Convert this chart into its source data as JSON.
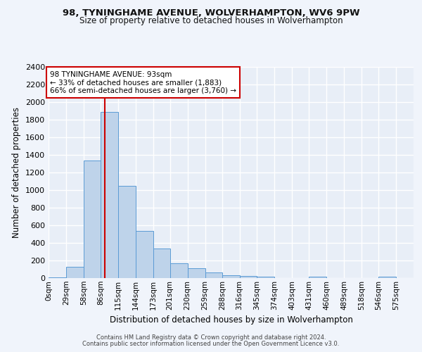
{
  "title_line1": "98, TYNINGHAME AVENUE, WOLVERHAMPTON, WV6 9PW",
  "title_line2": "Size of property relative to detached houses in Wolverhampton",
  "xlabel": "Distribution of detached houses by size in Wolverhampton",
  "ylabel": "Number of detached properties",
  "bin_labels": [
    "0sqm",
    "29sqm",
    "58sqm",
    "86sqm",
    "115sqm",
    "144sqm",
    "173sqm",
    "201sqm",
    "230sqm",
    "259sqm",
    "288sqm",
    "316sqm",
    "345sqm",
    "374sqm",
    "403sqm",
    "431sqm",
    "460sqm",
    "489sqm",
    "518sqm",
    "546sqm",
    "575sqm"
  ],
  "bar_values": [
    10,
    130,
    1340,
    1890,
    1045,
    540,
    340,
    165,
    110,
    62,
    35,
    25,
    18,
    0,
    0,
    20,
    0,
    0,
    0,
    15,
    0
  ],
  "bin_edges": [
    0,
    29,
    58,
    86,
    115,
    144,
    173,
    201,
    230,
    259,
    288,
    316,
    345,
    374,
    403,
    431,
    460,
    489,
    518,
    546,
    575,
    604
  ],
  "bar_color": "#bed3ea",
  "bar_edge_color": "#5b9bd5",
  "property_size": 93,
  "annotation_text1": "98 TYNINGHAME AVENUE: 93sqm",
  "annotation_text2": "← 33% of detached houses are smaller (1,883)",
  "annotation_text3": "66% of semi-detached houses are larger (3,760) →",
  "annotation_box_color": "#ffffff",
  "annotation_border_color": "#cc0000",
  "red_line_color": "#cc0000",
  "ylim_max": 2400,
  "yticks": [
    0,
    200,
    400,
    600,
    800,
    1000,
    1200,
    1400,
    1600,
    1800,
    2000,
    2200,
    2400
  ],
  "plot_bg_color": "#e8eef7",
  "fig_bg_color": "#f0f4fb",
  "grid_color": "#ffffff",
  "footnote1": "Contains HM Land Registry data © Crown copyright and database right 2024.",
  "footnote2": "Contains public sector information licensed under the Open Government Licence v3.0."
}
